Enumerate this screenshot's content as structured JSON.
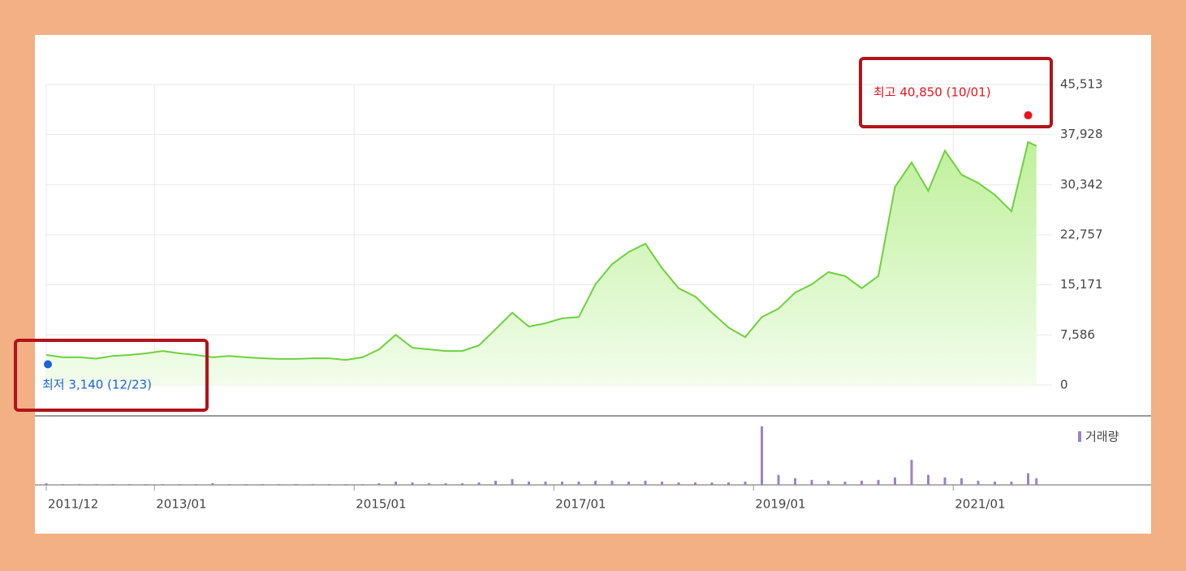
{
  "chart_data": [
    {
      "type": "area",
      "color": "#6ed13d",
      "x": [
        "2011/12",
        "2012/02",
        "2012/04",
        "2012/06",
        "2012/08",
        "2012/10",
        "2012/12",
        "2013/02",
        "2013/04",
        "2013/06",
        "2013/08",
        "2013/10",
        "2013/12",
        "2014/02",
        "2014/04",
        "2014/06",
        "2014/08",
        "2014/10",
        "2014/12",
        "2015/02",
        "2015/04",
        "2015/06",
        "2015/08",
        "2015/10",
        "2015/12",
        "2016/02",
        "2016/04",
        "2016/06",
        "2016/08",
        "2016/10",
        "2016/12",
        "2017/02",
        "2017/04",
        "2017/06",
        "2017/08",
        "2017/10",
        "2017/12",
        "2018/02",
        "2018/04",
        "2018/06",
        "2018/08",
        "2018/10",
        "2018/12",
        "2019/02",
        "2019/04",
        "2019/06",
        "2019/08",
        "2019/10",
        "2019/12",
        "2020/02",
        "2020/04",
        "2020/06",
        "2020/08",
        "2020/10",
        "2020/12",
        "2021/02",
        "2021/04",
        "2021/06",
        "2021/08",
        "2021/10",
        "2021/11"
      ],
      "values": [
        4550,
        4200,
        4200,
        4000,
        4400,
        4550,
        4800,
        5150,
        4800,
        4550,
        4200,
        4400,
        4200,
        4050,
        3950,
        3950,
        4050,
        4050,
        3800,
        4200,
        5400,
        7600,
        5650,
        5400,
        5150,
        5150,
        6000,
        8450,
        10950,
        8850,
        9350,
        10100,
        10300,
        15250,
        18300,
        20150,
        21400,
        17700,
        14650,
        13400,
        10950,
        8700,
        7250,
        10300,
        11550,
        14000,
        15250,
        17100,
        16500,
        14650,
        16500,
        30000,
        33700,
        29400,
        35500,
        31850,
        30600,
        28800,
        26300,
        36800,
        36200
      ],
      "ylim": [
        0,
        45513
      ],
      "yticks": [
        0,
        {
          "value": 7586,
          "label": "7,586"
        },
        {
          "value": 15171,
          "label": "15,171"
        },
        {
          "value": 22757,
          "label": "22,757"
        },
        {
          "value": 30342,
          "label": "30,342"
        },
        {
          "value": 37928,
          "label": "37,928"
        },
        {
          "value": 45513,
          "label": "45,513"
        }
      ],
      "xticks": [
        "2011/12",
        "2013/01",
        "2015/01",
        "2017/01",
        "2019/01",
        "2021/01"
      ],
      "grid": true,
      "high": {
        "value": 40850,
        "label": "최고 40,850 (10/01)",
        "color": "#e8141c"
      },
      "low": {
        "value": 3140,
        "label": "최저 3,140 (12/23)",
        "color": "#1c62d8"
      }
    },
    {
      "type": "bar",
      "color": "#9b82c9",
      "legend": "거래량",
      "values": [
        2,
        1,
        1,
        1,
        1,
        1,
        1,
        1,
        1,
        1,
        2,
        1,
        1,
        1,
        1,
        1,
        1,
        1,
        1,
        1,
        2,
        4,
        3,
        2,
        2,
        2,
        3,
        5,
        7,
        4,
        4,
        4,
        4,
        5,
        5,
        4,
        5,
        4,
        3,
        3,
        3,
        3,
        4,
        70,
        12,
        8,
        6,
        5,
        4,
        5,
        6,
        9,
        30,
        12,
        9,
        8,
        5,
        4,
        4,
        14,
        8
      ]
    }
  ]
}
